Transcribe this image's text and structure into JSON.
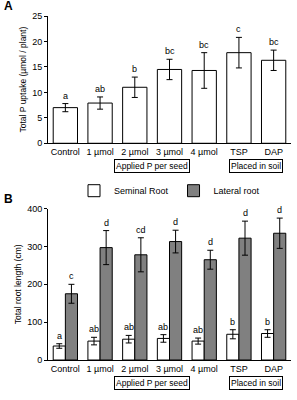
{
  "chart_data": [
    {
      "type": "bar",
      "panel": "A",
      "y_label": "Total P uptake (µmol / plant)",
      "categories": [
        "Control",
        "1 µmol",
        "2 µmol",
        "3 µmol",
        "4 µmol",
        "TSP",
        "DAP"
      ],
      "series": [
        {
          "color": "#ffffff",
          "values": [
            7.0,
            7.9,
            11.0,
            14.5,
            14.3,
            17.8,
            16.3
          ],
          "errors": [
            0.8,
            1.2,
            2.0,
            2.0,
            3.5,
            3.0,
            2.0
          ],
          "letters": [
            "a",
            "ab",
            "b",
            "bc",
            "bc",
            "c",
            "bc"
          ]
        }
      ],
      "ylim": [
        0,
        25
      ],
      "yticks": [
        0,
        5,
        10,
        15,
        20,
        25
      ],
      "grid": false,
      "groups": [
        {
          "text": "Applied P per seed",
          "categories": [
            "1 µmol",
            "2 µmol",
            "3 µmol",
            "4 µmol"
          ]
        },
        {
          "text": "Placed in soil",
          "categories": [
            "TSP",
            "DAP"
          ]
        }
      ]
    },
    {
      "type": "bar",
      "panel": "B",
      "y_label": "Total root length (cm)",
      "categories": [
        "Control",
        "1 µmol",
        "2 µmol",
        "3 µmol",
        "4 µmol",
        "TSP",
        "DAP"
      ],
      "series": [
        {
          "name": "Seminal Root",
          "color": "#ffffff",
          "values": [
            37,
            50,
            55,
            57,
            50,
            68,
            70
          ],
          "errors": [
            6,
            10,
            10,
            10,
            8,
            12,
            10
          ],
          "letters": [
            "a",
            "ab",
            "ab",
            "ab",
            "ab",
            "b",
            "b"
          ]
        },
        {
          "name": "Lateral root",
          "color": "#808080",
          "values": [
            175,
            297,
            278,
            313,
            265,
            322,
            335
          ],
          "errors": [
            25,
            45,
            45,
            30,
            25,
            45,
            40
          ],
          "letters": [
            "c",
            "d",
            "cd",
            "d",
            "d",
            "d",
            "d"
          ]
        }
      ],
      "ylim": [
        0,
        400
      ],
      "yticks": [
        0,
        100,
        200,
        300,
        400
      ],
      "grid": false,
      "legend": "top",
      "groups": [
        {
          "text": "Applied P per seed",
          "categories": [
            "1 µmol",
            "2 µmol",
            "3 µmol",
            "4 µmol"
          ]
        },
        {
          "text": "Placed in soil",
          "categories": [
            "TSP",
            "DAP"
          ]
        }
      ]
    }
  ]
}
